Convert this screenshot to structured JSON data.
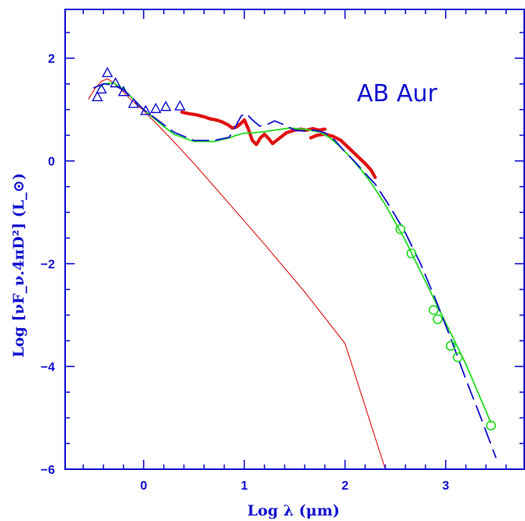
{
  "chart_data": {
    "type": "scatter",
    "annotation": "AB Aur",
    "xlabel": "Log λ  (μm)",
    "ylabel": "Log [νF_ν.4πD²]  (L_⊙)",
    "xlim": [
      -0.78,
      3.78
    ],
    "ylim": [
      -6,
      2.95
    ],
    "x_ticks": [
      0,
      1,
      2,
      3
    ],
    "y_ticks": [
      -6,
      -4,
      -2,
      0,
      2
    ],
    "grid": false,
    "colors": {
      "axes": "#1010d0",
      "photosphere": "#e01010",
      "spectrum": "#e01010",
      "model_green": "#22dd22",
      "model_blue": "#1010d0",
      "triangles": "#1010d0",
      "circles": "#22dd22"
    },
    "series": [
      {
        "kind": "photosphere_line",
        "x": [
          -0.55,
          -0.48,
          -0.42,
          -0.36,
          -0.3,
          -0.24,
          -0.18,
          -0.12,
          -0.06,
          0.0,
          0.1,
          0.25,
          0.5,
          0.8,
          1.2,
          1.6,
          2.0,
          2.4
        ],
        "y": [
          1.2,
          1.42,
          1.55,
          1.6,
          1.52,
          1.42,
          1.3,
          1.18,
          1.08,
          0.98,
          0.78,
          0.48,
          -0.05,
          -0.72,
          -1.62,
          -2.55,
          -3.55,
          -6.0
        ]
      },
      {
        "kind": "measured_spectrum_segments",
        "segments": [
          {
            "x": [
              0.38,
              0.45,
              0.52,
              0.6,
              0.66,
              0.72,
              0.78,
              0.84,
              0.88,
              0.92,
              0.96,
              1.0
            ],
            "y": [
              0.95,
              0.92,
              0.9,
              0.86,
              0.82,
              0.8,
              0.76,
              0.7,
              0.64,
              0.66,
              0.72,
              0.8
            ]
          },
          {
            "x": [
              1.0,
              1.04,
              1.08,
              1.12,
              1.16,
              1.2,
              1.24,
              1.28,
              1.32,
              1.36
            ],
            "y": [
              0.8,
              0.62,
              0.4,
              0.32,
              0.45,
              0.52,
              0.44,
              0.34,
              0.4,
              0.46
            ]
          },
          {
            "x": [
              1.36,
              1.42,
              1.5,
              1.56,
              1.62,
              1.68,
              1.74,
              1.8
            ],
            "y": [
              0.46,
              0.55,
              0.6,
              0.62,
              0.6,
              0.63,
              0.6,
              0.62
            ]
          },
          {
            "x": [
              1.66,
              1.72,
              1.8,
              1.88,
              1.96,
              2.04,
              2.12,
              2.2,
              2.26,
              2.3
            ],
            "y": [
              0.45,
              0.5,
              0.52,
              0.48,
              0.4,
              0.25,
              0.1,
              -0.05,
              -0.18,
              -0.32
            ]
          }
        ]
      },
      {
        "kind": "model_green",
        "x": [
          -0.45,
          -0.4,
          -0.3,
          -0.2,
          -0.1,
          0.0,
          0.15,
          0.3,
          0.5,
          0.7,
          0.85,
          0.92,
          1.0,
          1.1,
          1.2,
          1.3,
          1.45,
          1.6,
          1.75,
          1.85,
          1.95,
          2.05,
          2.15,
          2.25,
          2.4,
          2.6,
          2.8,
          3.0,
          3.2,
          3.45
        ],
        "y": [
          1.4,
          1.5,
          1.52,
          1.4,
          1.2,
          1.0,
          0.75,
          0.52,
          0.38,
          0.38,
          0.45,
          0.5,
          0.54,
          0.55,
          0.57,
          0.6,
          0.64,
          0.62,
          0.56,
          0.45,
          0.28,
          0.08,
          -0.15,
          -0.4,
          -0.85,
          -1.55,
          -2.35,
          -3.15,
          -3.95,
          -5.1
        ]
      },
      {
        "kind": "model_blue_dashed",
        "x": [
          -0.5,
          -0.4,
          -0.3,
          -0.2,
          -0.1,
          0.0,
          0.15,
          0.3,
          0.5,
          0.7,
          0.85,
          0.92,
          0.97,
          1.02,
          1.08,
          1.15,
          1.22,
          1.3,
          1.4,
          1.5,
          1.6,
          1.7,
          1.8,
          1.9,
          2.0,
          2.1,
          2.2,
          2.3,
          2.45,
          2.6,
          2.75,
          2.9,
          3.05,
          3.2,
          3.35,
          3.5
        ],
        "y": [
          1.42,
          1.5,
          1.48,
          1.38,
          1.2,
          1.0,
          0.78,
          0.56,
          0.4,
          0.4,
          0.46,
          0.7,
          0.88,
          0.92,
          0.8,
          0.68,
          0.7,
          0.78,
          0.7,
          0.6,
          0.58,
          0.6,
          0.55,
          0.4,
          0.18,
          -0.02,
          -0.24,
          -0.45,
          -0.9,
          -1.4,
          -2.0,
          -2.7,
          -3.45,
          -4.25,
          -5.0,
          -5.78
        ]
      },
      {
        "kind": "triangles",
        "x": [
          -0.46,
          -0.42,
          -0.36,
          -0.28,
          -0.2,
          -0.1,
          0.02,
          0.12,
          0.22,
          0.36
        ],
        "y": [
          1.25,
          1.4,
          1.72,
          1.52,
          1.35,
          1.12,
          0.98,
          1.02,
          1.06,
          1.07
        ]
      },
      {
        "kind": "circles",
        "x": [
          2.55,
          2.66,
          2.88,
          2.92,
          3.05,
          3.12,
          3.45
        ],
        "y": [
          -1.33,
          -1.8,
          -2.9,
          -3.08,
          -3.6,
          -3.82,
          -5.15
        ]
      }
    ]
  }
}
